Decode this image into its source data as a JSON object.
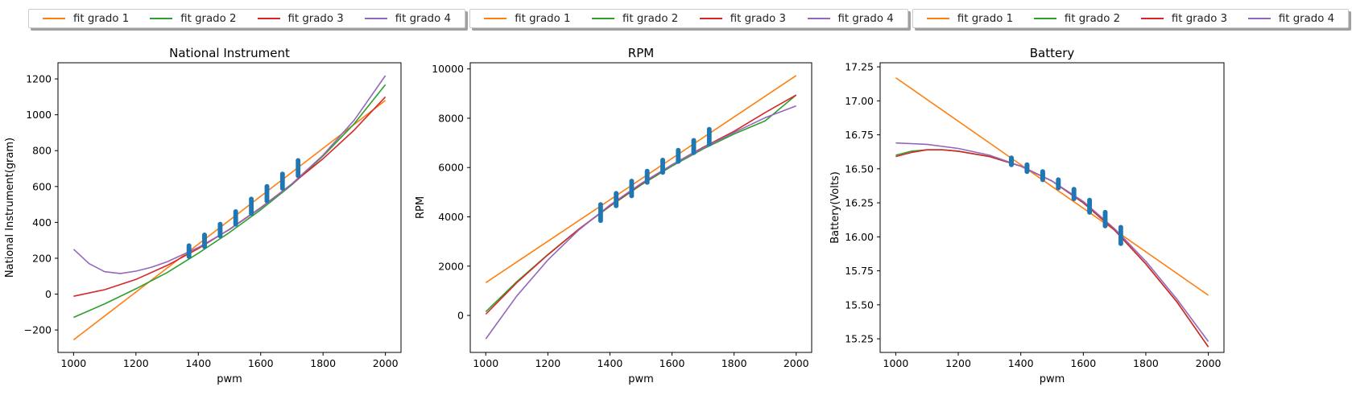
{
  "legend": {
    "entries": [
      {
        "label": "fit grado 1",
        "color": "#ff7f0e"
      },
      {
        "label": "fit grado 2",
        "color": "#2ca02c"
      },
      {
        "label": "fit grado 3",
        "color": "#d62728"
      },
      {
        "label": "fit grado 4",
        "color": "#9467bd"
      }
    ]
  },
  "chart_data": [
    {
      "type": "scatter",
      "title": "National Instrument",
      "xlabel": "pwm",
      "ylabel": "National Instrument(gram)",
      "xlim": [
        950,
        2050
      ],
      "ylim": [
        -325,
        1290
      ],
      "xticks": [
        1000,
        1200,
        1400,
        1600,
        1800,
        2000
      ],
      "yticks": [
        -200,
        0,
        200,
        400,
        600,
        800,
        1000,
        1200
      ],
      "grid": false,
      "scatter_color": "#1f77b4",
      "scatter": [
        {
          "x": 1370,
          "y_range": [
            210,
            270
          ]
        },
        {
          "x": 1420,
          "y_range": [
            265,
            330
          ]
        },
        {
          "x": 1470,
          "y_range": [
            325,
            390
          ]
        },
        {
          "x": 1520,
          "y_range": [
            390,
            460
          ]
        },
        {
          "x": 1570,
          "y_range": [
            450,
            530
          ]
        },
        {
          "x": 1620,
          "y_range": [
            520,
            600
          ]
        },
        {
          "x": 1670,
          "y_range": [
            590,
            670
          ]
        },
        {
          "x": 1720,
          "y_range": [
            660,
            745
          ]
        }
      ],
      "series": [
        {
          "name": "fit grado 1",
          "color": "#ff7f0e",
          "x": [
            1000,
            1500,
            2000
          ],
          "y": [
            -255,
            412,
            1080
          ]
        },
        {
          "name": "fit grado 2",
          "color": "#2ca02c",
          "x": [
            1000,
            1100,
            1200,
            1300,
            1400,
            1500,
            1600,
            1700,
            1800,
            1900,
            2000
          ],
          "y": [
            -130,
            -54,
            30,
            120,
            228,
            344,
            470,
            610,
            770,
            950,
            1168
          ]
        },
        {
          "name": "fit grado 3",
          "color": "#d62728",
          "x": [
            1000,
            1100,
            1200,
            1300,
            1400,
            1500,
            1600,
            1700,
            1800,
            1900,
            2000
          ],
          "y": [
            -12,
            25,
            82,
            160,
            254,
            362,
            482,
            614,
            755,
            915,
            1100
          ]
        },
        {
          "name": "fit grado 4",
          "color": "#9467bd",
          "x": [
            1000,
            1050,
            1100,
            1150,
            1200,
            1250,
            1300,
            1400,
            1500,
            1600,
            1700,
            1800,
            1900,
            2000
          ],
          "y": [
            250,
            170,
            125,
            115,
            128,
            150,
            180,
            260,
            360,
            480,
            615,
            775,
            970,
            1218
          ]
        }
      ]
    },
    {
      "type": "scatter",
      "title": "RPM",
      "xlabel": "pwm",
      "ylabel": "RPM",
      "xlim": [
        950,
        2050
      ],
      "ylim": [
        -1500,
        10250
      ],
      "xticks": [
        1000,
        1200,
        1400,
        1600,
        1800,
        2000
      ],
      "yticks": [
        0,
        2000,
        4000,
        6000,
        8000,
        10000
      ],
      "grid": false,
      "scatter_color": "#1f77b4",
      "scatter": [
        {
          "x": 1370,
          "y_range": [
            3850,
            4500
          ]
        },
        {
          "x": 1420,
          "y_range": [
            4450,
            4950
          ]
        },
        {
          "x": 1470,
          "y_range": [
            4850,
            5450
          ]
        },
        {
          "x": 1520,
          "y_range": [
            5400,
            5850
          ]
        },
        {
          "x": 1570,
          "y_range": [
            5800,
            6300
          ]
        },
        {
          "x": 1620,
          "y_range": [
            6250,
            6700
          ]
        },
        {
          "x": 1670,
          "y_range": [
            6600,
            7100
          ]
        },
        {
          "x": 1720,
          "y_range": [
            6950,
            7550
          ]
        }
      ],
      "series": [
        {
          "name": "fit grado 1",
          "color": "#ff7f0e",
          "x": [
            1000,
            1500,
            2000
          ],
          "y": [
            1330,
            5530,
            9730
          ]
        },
        {
          "name": "fit grado 2",
          "color": "#2ca02c",
          "x": [
            1000,
            1100,
            1200,
            1300,
            1400,
            1500,
            1600,
            1700,
            1800,
            1900,
            2000
          ],
          "y": [
            150,
            1370,
            2470,
            3500,
            4430,
            5290,
            6060,
            6750,
            7360,
            7890,
            8940
          ]
        },
        {
          "name": "fit grado 3",
          "color": "#d62728",
          "x": [
            1000,
            1100,
            1200,
            1300,
            1400,
            1500,
            1600,
            1700,
            1800,
            1900,
            2000
          ],
          "y": [
            50,
            1330,
            2460,
            3500,
            4450,
            5320,
            6110,
            6820,
            7470,
            8230,
            8940
          ]
        },
        {
          "name": "fit grado 4",
          "color": "#9467bd",
          "x": [
            1000,
            1100,
            1200,
            1300,
            1400,
            1500,
            1600,
            1700,
            1800,
            1900,
            2000
          ],
          "y": [
            -950,
            790,
            2250,
            3470,
            4480,
            5350,
            6110,
            6790,
            7420,
            8020,
            8500
          ]
        }
      ]
    },
    {
      "type": "scatter",
      "title": "Battery",
      "xlabel": "pwm",
      "ylabel": "Battery(Volts)",
      "xlim": [
        950,
        2050
      ],
      "ylim": [
        15.15,
        17.28
      ],
      "xticks": [
        1000,
        1200,
        1400,
        1600,
        1800,
        2000
      ],
      "yticks": [
        15.25,
        15.5,
        15.75,
        16.0,
        16.25,
        16.5,
        16.75,
        17.0,
        17.25
      ],
      "grid": false,
      "scatter_color": "#1f77b4",
      "scatter": [
        {
          "x": 1370,
          "y_range": [
            16.53,
            16.58
          ]
        },
        {
          "x": 1420,
          "y_range": [
            16.48,
            16.53
          ]
        },
        {
          "x": 1470,
          "y_range": [
            16.42,
            16.48
          ]
        },
        {
          "x": 1520,
          "y_range": [
            16.36,
            16.42
          ]
        },
        {
          "x": 1570,
          "y_range": [
            16.28,
            16.35
          ]
        },
        {
          "x": 1620,
          "y_range": [
            16.18,
            16.27
          ]
        },
        {
          "x": 1670,
          "y_range": [
            16.08,
            16.18
          ]
        },
        {
          "x": 1720,
          "y_range": [
            15.95,
            16.07
          ]
        }
      ],
      "series": [
        {
          "name": "fit grado 1",
          "color": "#ff7f0e",
          "x": [
            1000,
            1500,
            2000
          ],
          "y": [
            17.17,
            16.37,
            15.57
          ]
        },
        {
          "name": "fit grado 2",
          "color": "#2ca02c",
          "x": [
            1000,
            1050,
            1100,
            1150,
            1200,
            1300,
            1400,
            1500,
            1600,
            1700,
            1800,
            1900,
            2000
          ],
          "y": [
            16.6,
            16.63,
            16.64,
            16.64,
            16.63,
            16.59,
            16.52,
            16.41,
            16.25,
            16.05,
            15.8,
            15.52,
            15.19
          ]
        },
        {
          "name": "fit grado 3",
          "color": "#d62728",
          "x": [
            1000,
            1050,
            1100,
            1150,
            1200,
            1300,
            1400,
            1500,
            1600,
            1700,
            1800,
            1900,
            2000
          ],
          "y": [
            16.59,
            16.62,
            16.64,
            16.64,
            16.63,
            16.59,
            16.52,
            16.41,
            16.25,
            16.05,
            15.8,
            15.52,
            15.19
          ]
        },
        {
          "name": "fit grado 4",
          "color": "#9467bd",
          "x": [
            1000,
            1100,
            1200,
            1300,
            1400,
            1500,
            1600,
            1700,
            1800,
            1900,
            2000
          ],
          "y": [
            16.69,
            16.68,
            16.65,
            16.6,
            16.52,
            16.41,
            16.26,
            16.06,
            15.82,
            15.54,
            15.23
          ]
        }
      ]
    }
  ]
}
